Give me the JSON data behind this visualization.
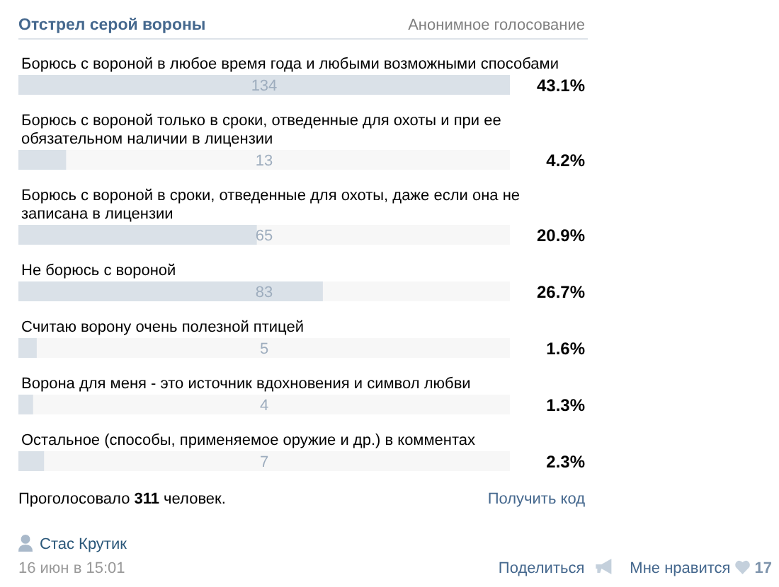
{
  "chart_data": {
    "type": "bar",
    "orientation": "horizontal",
    "title": "Отстрел серой вороны",
    "subtitle": "Анонимное голосование",
    "categories": [
      "Борюсь с вороной в любое время года и любыми возможными способами",
      "Борюсь с вороной только в сроки, отведенные для охоты и при ее обязательном наличии в лицензии",
      "Борюсь с вороной в сроки, отведенные для охоты, даже если она не записана в лицензии",
      "Не борюсь с вороной",
      "Считаю ворону очень полезной птицей",
      "Ворона для меня - это источник вдохновения и символ любви",
      "Остальное (способы, применяемое оружие и др.) в комментах"
    ],
    "values": [
      134,
      13,
      65,
      83,
      5,
      4,
      7
    ],
    "color": "#dae1e8",
    "xlim": [
      0,
      134
    ],
    "data_labels": true,
    "tick_labels": "y",
    "annotations": [
      "43.1%",
      "4.2%",
      "20.9%",
      "26.7%",
      "1.6%",
      "1.3%",
      "2.3%",
      "Проголосовало 311 человек.",
      "Получить код",
      "Стас Крутик",
      "16 июн в 15:01",
      "Поделиться",
      "Мне нравится",
      "17"
    ]
  }
}
